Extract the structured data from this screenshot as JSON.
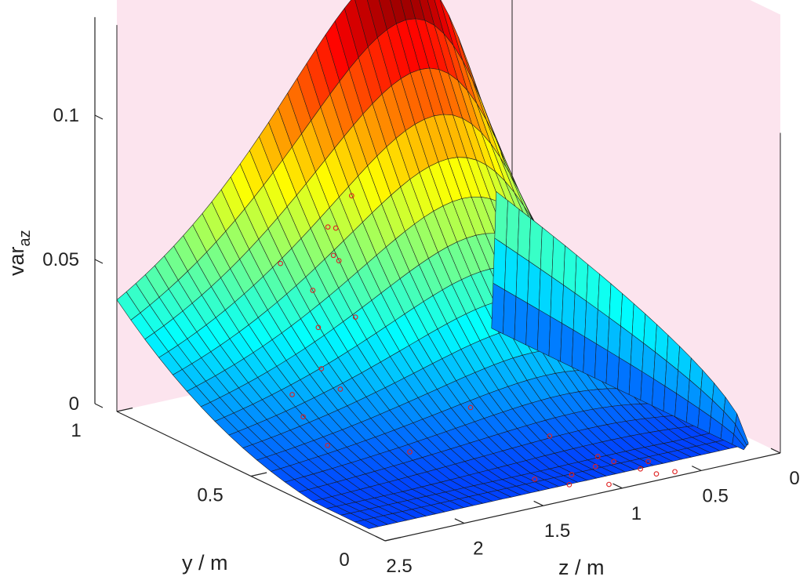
{
  "chart_data": {
    "type": "surface",
    "title": "",
    "xlabel": "z / m",
    "ylabel": "y / m",
    "zlabel": {
      "main": "var",
      "sub": "az"
    },
    "colormap": "jet",
    "grid": false,
    "background_panels_color": "#fce4ee",
    "axes": {
      "z_m": {
        "range": [
          0,
          2.5
        ],
        "ticks": [
          0,
          0.5,
          1,
          1.5,
          2,
          2.5
        ],
        "tick_labels": [
          "0",
          "0.5",
          "1",
          "1.5",
          "2",
          "2.5"
        ]
      },
      "y_m": {
        "range": [
          0,
          1
        ],
        "ticks": [
          0,
          0.5,
          1
        ],
        "tick_labels": [
          "0",
          "0.5",
          "1"
        ]
      },
      "var_az": {
        "range": [
          0,
          0.13
        ],
        "ticks": [
          0,
          0.05,
          0.1
        ],
        "tick_labels": [
          "0",
          "0.05",
          "0.1"
        ]
      }
    },
    "surface_description": {
      "peak": {
        "z": 0.75,
        "y": 0.9,
        "value": 0.133
      },
      "edge_values_near_zero_at": [
        "z = 2.5",
        "y = 0"
      ],
      "wall_near_z0": {
        "z": 0.1,
        "top_value": 0.045,
        "middle_value": 0.03
      }
    },
    "measured_points": {
      "marker": "circle",
      "color": "#e02020",
      "points": [
        {
          "z": 1.1,
          "y": 0.95,
          "var_az": 0.06
        },
        {
          "z": 1.2,
          "y": 0.95,
          "var_az": 0.05
        },
        {
          "z": 1.25,
          "y": 0.95,
          "var_az": 0.051
        },
        {
          "z": 1.35,
          "y": 0.85,
          "var_az": 0.045
        },
        {
          "z": 1.3,
          "y": 0.9,
          "var_az": 0.044
        },
        {
          "z": 1.55,
          "y": 0.95,
          "var_az": 0.042
        },
        {
          "z": 1.6,
          "y": 0.8,
          "var_az": 0.04
        },
        {
          "z": 1.5,
          "y": 0.7,
          "var_az": 0.034
        },
        {
          "z": 1.65,
          "y": 0.75,
          "var_az": 0.03
        },
        {
          "z": 1.8,
          "y": 0.65,
          "var_az": 0.022
        },
        {
          "z": 1.9,
          "y": 0.7,
          "var_az": 0.012
        },
        {
          "z": 1.85,
          "y": 0.55,
          "var_az": 0.02
        },
        {
          "z": 2.0,
          "y": 0.6,
          "var_az": 0.01
        },
        {
          "z": 2.1,
          "y": 0.45,
          "var_az": 0.008
        },
        {
          "z": 1.75,
          "y": 0.35,
          "var_az": 0.006
        },
        {
          "z": 1.45,
          "y": 0.3,
          "var_az": 0.02
        },
        {
          "z": 0.95,
          "y": 0.3,
          "var_az": 0.004
        },
        {
          "z": 0.9,
          "y": 0.15,
          "var_az": 0.003
        },
        {
          "z": 1.0,
          "y": 0.1,
          "var_az": 0.003
        },
        {
          "z": 1.15,
          "y": 0.1,
          "var_az": 0.002
        },
        {
          "z": 1.25,
          "y": 0.05,
          "var_az": 0.002
        },
        {
          "z": 1.35,
          "y": 0.12,
          "var_az": 0.002
        },
        {
          "z": 0.8,
          "y": 0.05,
          "var_az": 0.002
        },
        {
          "z": 0.85,
          "y": 0.12,
          "var_az": 0.002
        },
        {
          "z": 0.7,
          "y": 0.08,
          "var_az": 0.002
        },
        {
          "z": 0.75,
          "y": 0.02,
          "var_az": 0.001
        },
        {
          "z": 0.65,
          "y": 0.01,
          "var_az": 0.001
        },
        {
          "z": 1.05,
          "y": 0.02,
          "var_az": 0.001
        }
      ]
    }
  }
}
